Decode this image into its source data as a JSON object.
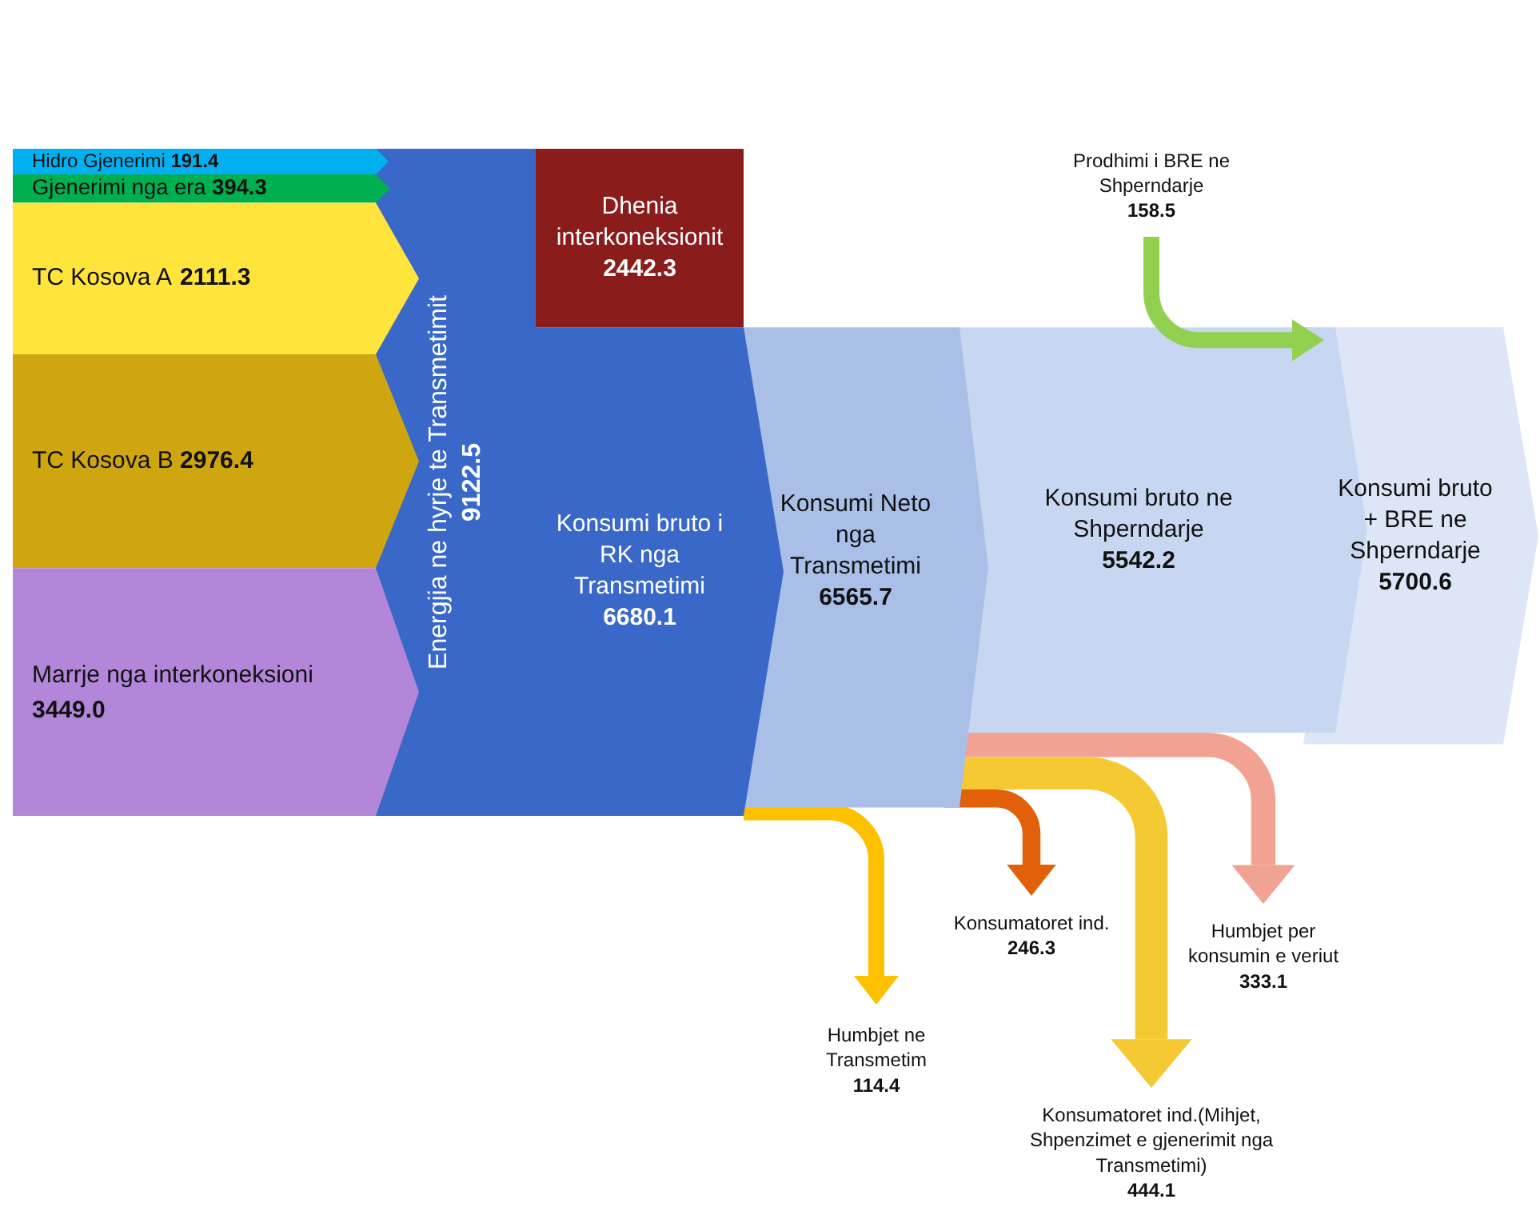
{
  "chart_data": {
    "type": "other",
    "categories": [
      "Hidro Gjenerimi",
      "Gjenerimi nga era",
      "TC Kosova A",
      "TC Kosova B",
      "Marrje nga interkoneksioni",
      "Energjia ne hyrje te Transmetimit",
      "Dhenia interkoneksionit",
      "Konsumi bruto i RK nga Transmetimi",
      "Konsumi Neto nga Transmetimi",
      "Humbjet ne Transmetim",
      "Konsumi bruto ne Shperndarje",
      "Konsumatoret ind.",
      "Konsumatoret ind.(Mihjet, Shpenzimet e gjenerimit nga Transmetimi)",
      "Humbjet per konsumin e veriut",
      "Prodhimi i BRE ne Shperndarje",
      "Konsumi bruto + BRE ne Shperndarje"
    ],
    "values": [
      191.4,
      394.3,
      2111.3,
      2976.4,
      3449.0,
      9122.5,
      2442.3,
      6680.1,
      6565.7,
      114.4,
      5542.2,
      246.3,
      444.1,
      333.1,
      158.5,
      5700.6
    ],
    "colors": [
      "#00b0f0",
      "#00b050",
      "#ffe43c",
      "#cfa60f",
      "#b286d8",
      "#3a68c8",
      "#8b1c1c",
      "#3a68c8",
      "#a9bfe8",
      "#ffc000",
      "#c8d7f1",
      "#e2600a",
      "#f4c932",
      "#f2a292",
      "#92d050",
      "#dde6f6"
    ],
    "value_labels": [
      "191.4",
      "394.3",
      "2111.3",
      "2976.4",
      "3449.0",
      "9122.5",
      "2442.3",
      "6680.1",
      "6565.7",
      "114.4",
      "5542.2",
      "246.3",
      "444.1",
      "333.1",
      "158.5",
      "5700.6"
    ]
  }
}
